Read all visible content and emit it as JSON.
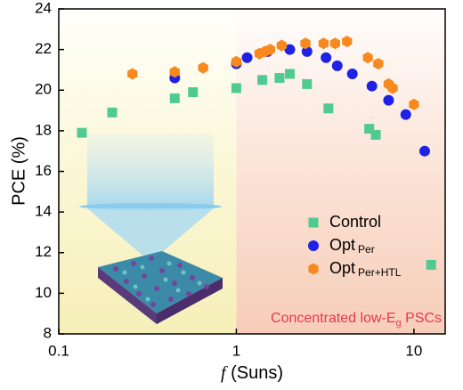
{
  "chart_data": {
    "type": "scatter",
    "xscale": "log",
    "x_label": {
      "var": "f",
      "unit": "(Suns)"
    },
    "y_label": "PCE (%)",
    "annotation": {
      "text": "Concentrated low-E",
      "sub": "g",
      "tail": " PSCs"
    },
    "xlim": [
      0.1,
      15
    ],
    "ylim": [
      8,
      24
    ],
    "xticks": [
      0.1,
      1,
      10
    ],
    "yticks": [
      8,
      10,
      12,
      14,
      16,
      18,
      20,
      22,
      24
    ],
    "series": [
      {
        "name": "Control",
        "marker": "square",
        "color": "#4fcb91",
        "x": [
          0.135,
          0.2,
          0.45,
          0.57,
          1.0,
          1.4,
          1.75,
          2.0,
          2.5,
          3.3,
          5.6,
          6.1,
          12.5
        ],
        "values": [
          17.9,
          18.9,
          19.6,
          19.9,
          20.1,
          20.5,
          20.6,
          20.8,
          20.3,
          19.1,
          18.1,
          17.8,
          11.4
        ]
      },
      {
        "name": "Opt",
        "sub": "Per",
        "marker": "circle",
        "color": "#1f22e6",
        "x": [
          0.45,
          1.0,
          1.15,
          1.5,
          2.0,
          2.5,
          3.2,
          3.7,
          4.5,
          5.8,
          7.2,
          9.0,
          11.5
        ],
        "values": [
          20.6,
          21.3,
          21.6,
          21.9,
          22.0,
          21.9,
          21.6,
          21.2,
          20.8,
          20.2,
          19.5,
          18.8,
          17.0
        ]
      },
      {
        "name": "Opt",
        "sub": "Per+HTL",
        "marker": "hexagon",
        "color": "#f7891f",
        "x": [
          0.26,
          0.45,
          0.65,
          1.0,
          1.35,
          1.45,
          1.55,
          1.8,
          2.45,
          3.1,
          3.6,
          4.2,
          5.5,
          6.3,
          7.2,
          7.6,
          10.0
        ],
        "values": [
          20.8,
          20.9,
          21.1,
          21.4,
          21.8,
          21.9,
          22.0,
          22.2,
          22.3,
          22.3,
          22.3,
          22.4,
          21.6,
          21.3,
          20.3,
          20.1,
          19.3
        ]
      }
    ]
  }
}
